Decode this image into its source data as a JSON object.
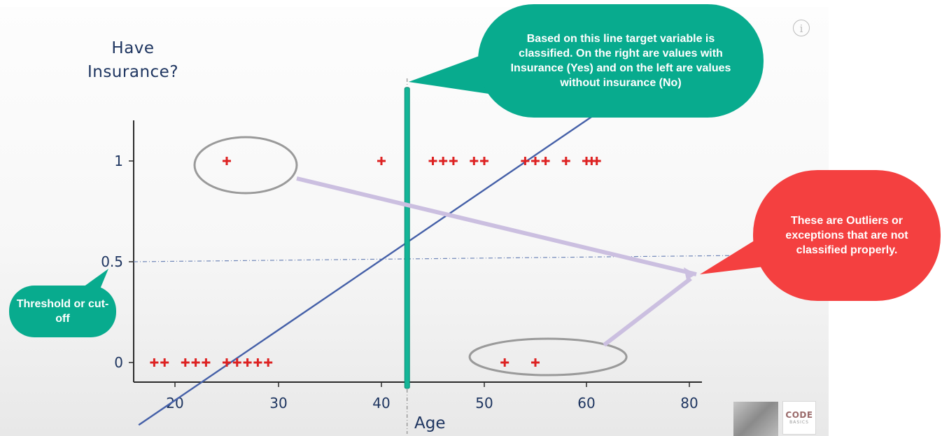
{
  "chart_data": {
    "type": "scatter",
    "title": "",
    "ylabel": "Have Insurance?",
    "xlabel": "Age",
    "x_ticks": [
      "20",
      "30",
      "40",
      "50",
      "60",
      "80"
    ],
    "y_ticks": [
      "1",
      "0.5",
      "0"
    ],
    "ylim": [
      0,
      1
    ],
    "grid": false,
    "legend": "none",
    "series": [
      {
        "marker": "+",
        "color": "#dd2222",
        "points": [
          [
            18,
            0
          ],
          [
            19,
            0
          ],
          [
            21,
            0
          ],
          [
            22,
            0
          ],
          [
            23,
            0
          ],
          [
            25,
            0
          ],
          [
            26,
            0
          ],
          [
            27,
            0
          ],
          [
            28,
            0
          ],
          [
            29,
            0
          ],
          [
            52,
            0
          ],
          [
            55,
            0
          ],
          [
            25,
            1
          ],
          [
            40,
            1
          ],
          [
            45,
            1
          ],
          [
            46,
            1
          ],
          [
            47,
            1
          ],
          [
            49,
            1
          ],
          [
            50,
            1
          ],
          [
            54,
            1
          ],
          [
            55,
            1
          ],
          [
            56,
            1
          ],
          [
            58,
            1
          ],
          [
            60,
            1
          ],
          [
            61,
            1
          ],
          [
            62,
            1
          ]
        ]
      }
    ],
    "threshold": {
      "y": 0.5,
      "label": "0.5"
    },
    "decision_boundary_age": 42.5,
    "regression_line": {
      "x_start": 16.5,
      "y_start": -0.31,
      "x_end": 64.5,
      "y_end": 1.28,
      "color": "#4560a8"
    },
    "outliers": [
      [
        25,
        1
      ],
      [
        52,
        0
      ],
      [
        55,
        0
      ]
    ]
  },
  "annotations": {
    "line_note": "Based on this line target variable is classified. On the right are values with Insurance (Yes) and on the left are values without insurance (No)",
    "outlier_note": "These are Outliers or exceptions that are not classified properly.",
    "threshold_note": "Threshold or cut-off"
  },
  "ui": {
    "info_icon": "info-icon",
    "info_glyph": "i",
    "logo_main": "CODE",
    "logo_sub": "BASICS"
  },
  "colors": {
    "accent_green": "#08ab8e",
    "alert_red": "#f44040",
    "axis_text": "#1e3560",
    "marker_red": "#dd2222"
  }
}
